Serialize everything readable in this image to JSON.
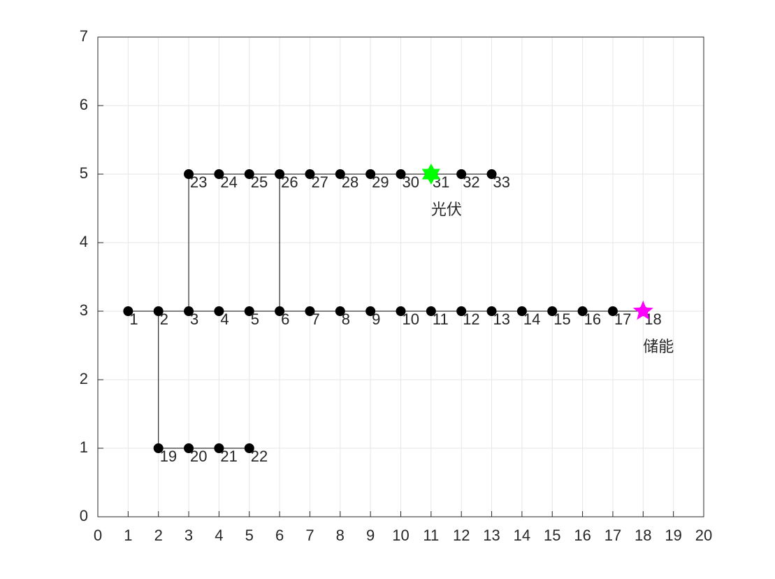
{
  "chart_data": {
    "type": "network",
    "x": [
      1,
      2,
      3,
      4,
      5,
      6,
      7,
      8,
      9,
      10,
      11,
      12,
      13,
      14,
      15,
      16,
      17,
      18,
      2,
      3,
      4,
      5,
      3,
      4,
      5,
      6,
      7,
      8,
      9,
      10,
      11,
      12,
      13
    ],
    "values": [
      3,
      3,
      3,
      3,
      3,
      3,
      3,
      3,
      3,
      3,
      3,
      3,
      3,
      3,
      3,
      3,
      3,
      3,
      1,
      1,
      1,
      1,
      5,
      5,
      5,
      5,
      5,
      5,
      5,
      5,
      5,
      5,
      5
    ],
    "labels": [
      "1",
      "2",
      "3",
      "4",
      "5",
      "6",
      "7",
      "8",
      "9",
      "10",
      "11",
      "12",
      "13",
      "14",
      "15",
      "16",
      "17",
      "18",
      "19",
      "20",
      "21",
      "22",
      "23",
      "24",
      "25",
      "26",
      "27",
      "28",
      "29",
      "30",
      "31",
      "32",
      "33"
    ],
    "color": "#000000",
    "annotations": [
      {
        "text": "光伏",
        "x": 11,
        "y": 5,
        "marker": "hexagram",
        "color": "#00ff00"
      },
      {
        "text": "储能",
        "x": 18,
        "y": 3,
        "marker": "pentagram",
        "color": "#ff00ff"
      }
    ],
    "xlim": [
      0,
      20
    ],
    "ylim": [
      0,
      7
    ],
    "xticks": [
      0,
      1,
      2,
      3,
      4,
      5,
      6,
      7,
      8,
      9,
      10,
      11,
      12,
      13,
      14,
      15,
      16,
      17,
      18,
      19,
      20
    ],
    "yticks": [
      0,
      1,
      2,
      3,
      4,
      5,
      6,
      7
    ],
    "grid": true
  }
}
